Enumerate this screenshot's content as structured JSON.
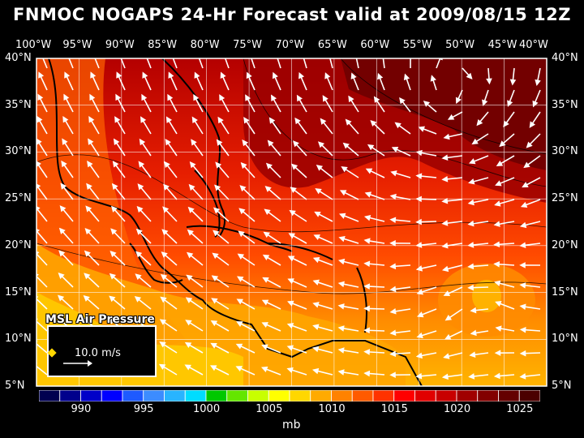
{
  "title": "FNMOC NOGAPS 24-Hr Forecast valid at 2009/08/15 12Z",
  "lon_labels": [
    "100°W",
    "95°W",
    "90°W",
    "85°W",
    "80°W",
    "75°W",
    "70°W",
    "65°W",
    "60°W",
    "55°W",
    "50°W",
    "45°W",
    "40°W"
  ],
  "lat_labels": [
    "40°N",
    "35°N",
    "30°N",
    "25°N",
    "20°N",
    "15°N",
    "10°N",
    "5°N"
  ],
  "field_label": "MSL Air Pressure",
  "reference_vector": "10.0 m/s",
  "colorbar": {
    "tick_labels": [
      "990",
      "995",
      "1000",
      "1005",
      "1010",
      "1015",
      "1020",
      "1025"
    ],
    "unit": "mb",
    "colors": [
      "#000050",
      "#00008c",
      "#0000c8",
      "#0000ff",
      "#1e5aff",
      "#3c8cff",
      "#28b4ff",
      "#00dcff",
      "#00c800",
      "#64e600",
      "#c8ff00",
      "#ffff00",
      "#ffd700",
      "#ffaa00",
      "#ff8200",
      "#ff5a00",
      "#ff3200",
      "#ff0000",
      "#e10000",
      "#c80000",
      "#a00000",
      "#820000",
      "#640000",
      "#4b0000"
    ]
  },
  "colors": {
    "land": "#000000",
    "grid": "#ffffff",
    "arrows": "#ffffff"
  }
}
